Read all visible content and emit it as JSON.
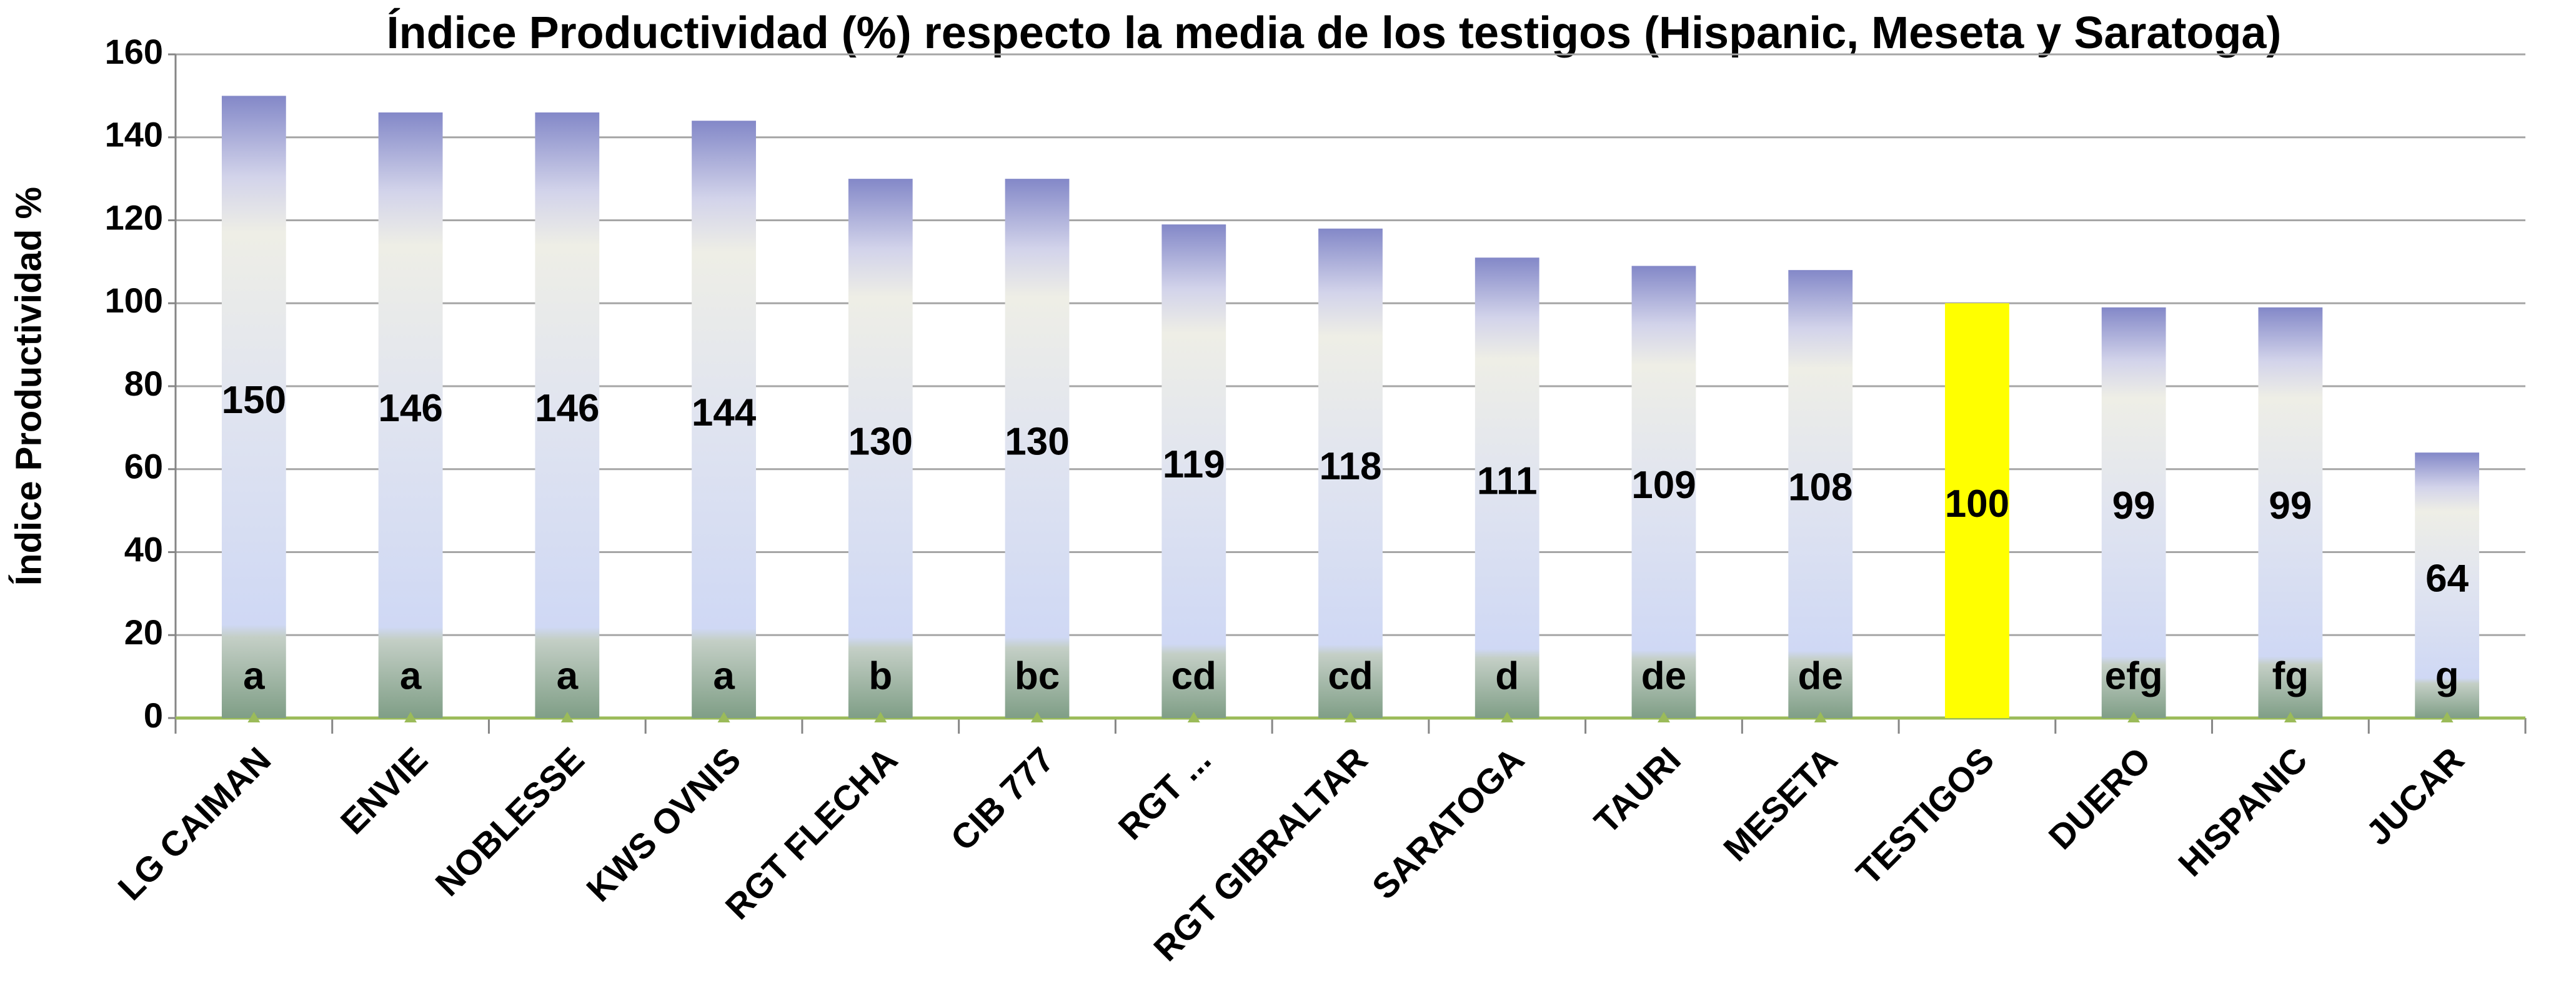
{
  "chart_data": {
    "type": "bar",
    "title": "Índice Productividad (%) respecto la media de los testigos (Hispanic, Meseta y Saratoga)",
    "y_label": "Índice Productividad  %",
    "categories": [
      "LG CAIMAN",
      "ENVIE",
      "NOBLESSE",
      "KWS OVNIS",
      "RGT FLECHA",
      "CIB 777",
      "RGT ...",
      "RGT GIBRALTAR",
      "SARATOGA",
      "TAURI",
      "MESETA",
      "TESTIGOS",
      "DUERO",
      "HISPANIC",
      "JUCAR"
    ],
    "values": [
      150,
      146,
      146,
      144,
      130,
      130,
      119,
      118,
      111,
      109,
      108,
      100,
      99,
      99,
      64
    ],
    "letters": [
      "a",
      "a",
      "a",
      "a",
      "b",
      "bc",
      "cd",
      "cd",
      "d",
      "de",
      "de",
      null,
      "efg",
      "fg",
      "g"
    ],
    "highlight_category": "TESTIGOS",
    "highlight_color": "#ffff00",
    "ylim": [
      0,
      160
    ],
    "yticks": [
      0,
      20,
      40,
      60,
      80,
      100,
      120,
      140,
      160
    ],
    "grid": true
  }
}
